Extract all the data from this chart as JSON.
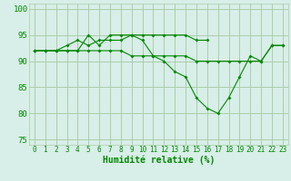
{
  "xlabel": "Humidité relative (%)",
  "background_color": "#d8eee8",
  "grid_color": "#aacfaa",
  "line_color": "#008800",
  "ylim": [
    74,
    101
  ],
  "xlim": [
    -0.5,
    23.5
  ],
  "yticks": [
    75,
    80,
    85,
    90,
    95,
    100
  ],
  "xticks": [
    0,
    1,
    2,
    3,
    4,
    5,
    6,
    7,
    8,
    9,
    10,
    11,
    12,
    13,
    14,
    15,
    16,
    17,
    18,
    19,
    20,
    21,
    22,
    23
  ],
  "series": [
    [
      92,
      92,
      92,
      92,
      92,
      95,
      93,
      95,
      95,
      95,
      94,
      91,
      90,
      88,
      87,
      83,
      81,
      80,
      83,
      87,
      91,
      90,
      93,
      93
    ],
    [
      92,
      92,
      92,
      93,
      94,
      93,
      94,
      94,
      94,
      95,
      95,
      95,
      95,
      95,
      95,
      94,
      94,
      null,
      null,
      null,
      null,
      null,
      null,
      null
    ],
    [
      92,
      92,
      92,
      92,
      92,
      92,
      92,
      92,
      92,
      91,
      91,
      91,
      91,
      91,
      91,
      90,
      90,
      90,
      90,
      90,
      90,
      90,
      93,
      93
    ]
  ]
}
